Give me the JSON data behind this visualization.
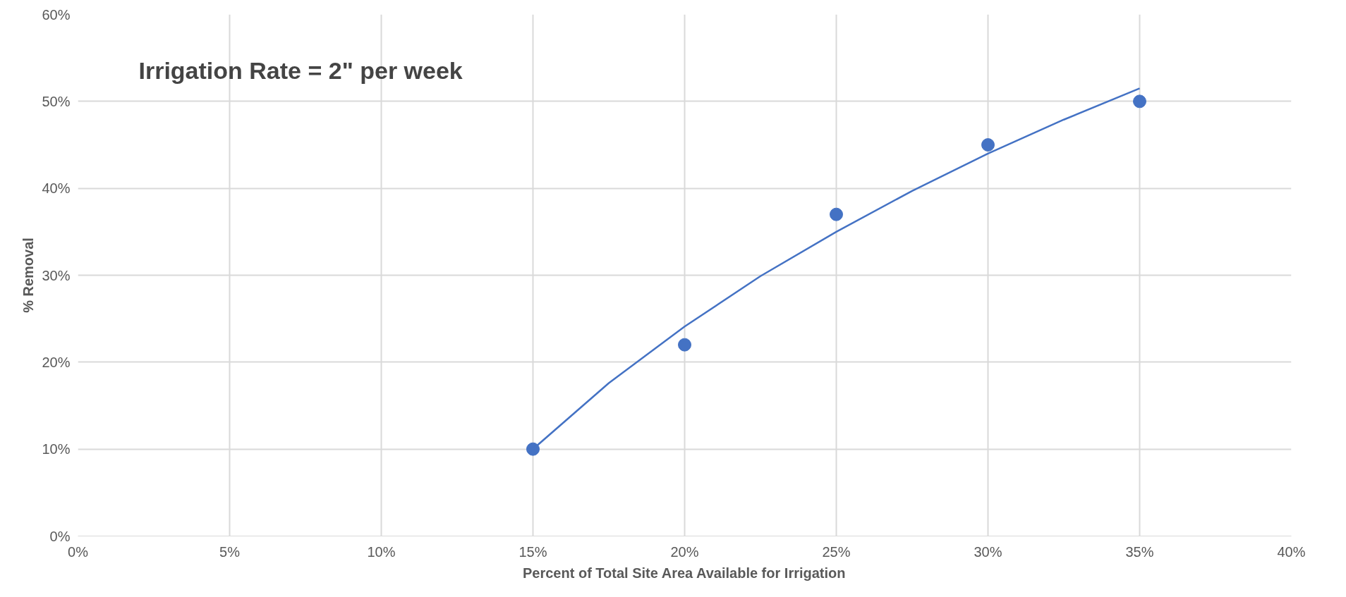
{
  "chart_data": {
    "type": "scatter",
    "xlabel": "Percent of Total Site Area Available for Irrigation",
    "ylabel": "% Removal",
    "annotations": [
      "Irrigation Rate = 2\" per week"
    ],
    "xlim": [
      0,
      40
    ],
    "ylim": [
      0,
      60
    ],
    "xticks": [
      {
        "value": 0,
        "label": "0%"
      },
      {
        "value": 5,
        "label": "5%"
      },
      {
        "value": 10,
        "label": "10%"
      },
      {
        "value": 15,
        "label": "15%"
      },
      {
        "value": 20,
        "label": "20%"
      },
      {
        "value": 25,
        "label": "25%"
      },
      {
        "value": 30,
        "label": "30%"
      },
      {
        "value": 35,
        "label": "35%"
      },
      {
        "value": 40,
        "label": "40%"
      }
    ],
    "yticks": [
      {
        "value": 0,
        "label": "0%"
      },
      {
        "value": 10,
        "label": "10%"
      },
      {
        "value": 20,
        "label": "20%"
      },
      {
        "value": 30,
        "label": "30%"
      },
      {
        "value": 40,
        "label": "40%"
      },
      {
        "value": 50,
        "label": "50%"
      },
      {
        "value": 60,
        "label": "60%"
      }
    ],
    "grid": true,
    "series": [
      {
        "marker": "circle",
        "color": "#4472c4",
        "x": [
          15,
          20,
          25,
          30,
          35
        ],
        "values": [
          10,
          22,
          37,
          45,
          50
        ]
      },
      {
        "type": "line",
        "color": "#4472c4",
        "x": [
          15,
          17.5,
          20,
          22.5,
          25,
          27.5,
          30,
          32.5,
          35
        ],
        "values": [
          10,
          17.6,
          24.1,
          29.9,
          35.0,
          39.7,
          44.0,
          47.9,
          51.5
        ]
      }
    ]
  }
}
